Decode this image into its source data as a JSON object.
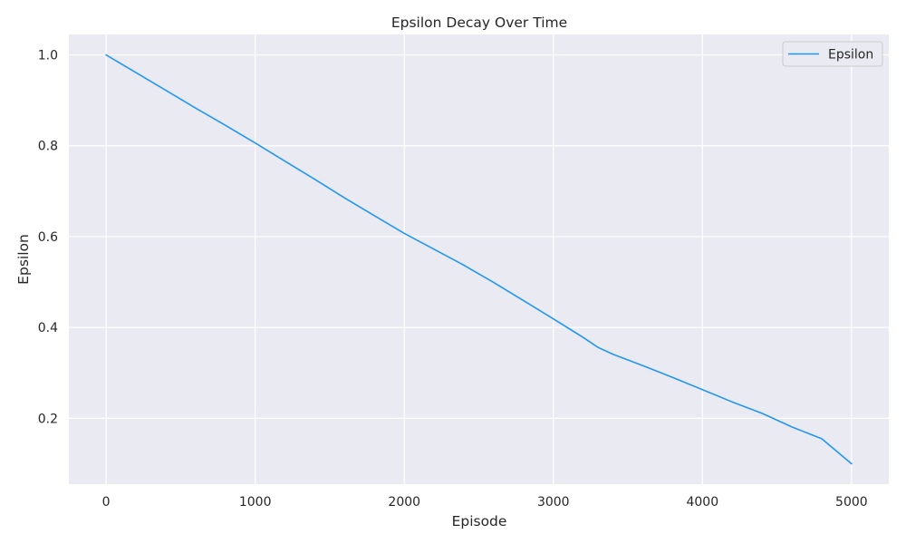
{
  "chart_data": {
    "type": "line",
    "title": "Epsilon Decay Over Time",
    "xlabel": "Episode",
    "ylabel": "Epsilon",
    "xlim": [
      -250,
      5250
    ],
    "ylim": [
      0.055,
      1.045
    ],
    "xticks": [
      0,
      1000,
      2000,
      3000,
      4000,
      5000
    ],
    "xtick_labels": [
      "0",
      "1000",
      "2000",
      "3000",
      "4000",
      "5000"
    ],
    "yticks": [
      0.2,
      0.4,
      0.6,
      0.8,
      1.0
    ],
    "ytick_labels": [
      "0.2",
      "0.4",
      "0.6",
      "0.8",
      "1.0"
    ],
    "grid": true,
    "legend": {
      "position": "upper right",
      "entries": [
        "Epsilon"
      ]
    },
    "series": [
      {
        "name": "Epsilon",
        "color": "#2196f3",
        "x": [
          0,
          200,
          400,
          600,
          800,
          1000,
          1200,
          1400,
          1600,
          1800,
          2000,
          2200,
          2400,
          2600,
          2800,
          3000,
          3200,
          3300,
          3400,
          3600,
          3800,
          4000,
          4200,
          4400,
          4600,
          4800,
          5000
        ],
        "y": [
          1.0,
          0.961,
          0.922,
          0.883,
          0.845,
          0.806,
          0.766,
          0.726,
          0.685,
          0.646,
          0.607,
          0.572,
          0.537,
          0.499,
          0.459,
          0.419,
          0.378,
          0.356,
          0.341,
          0.316,
          0.29,
          0.263,
          0.236,
          0.211,
          0.181,
          0.155,
          0.1
        ]
      }
    ]
  }
}
